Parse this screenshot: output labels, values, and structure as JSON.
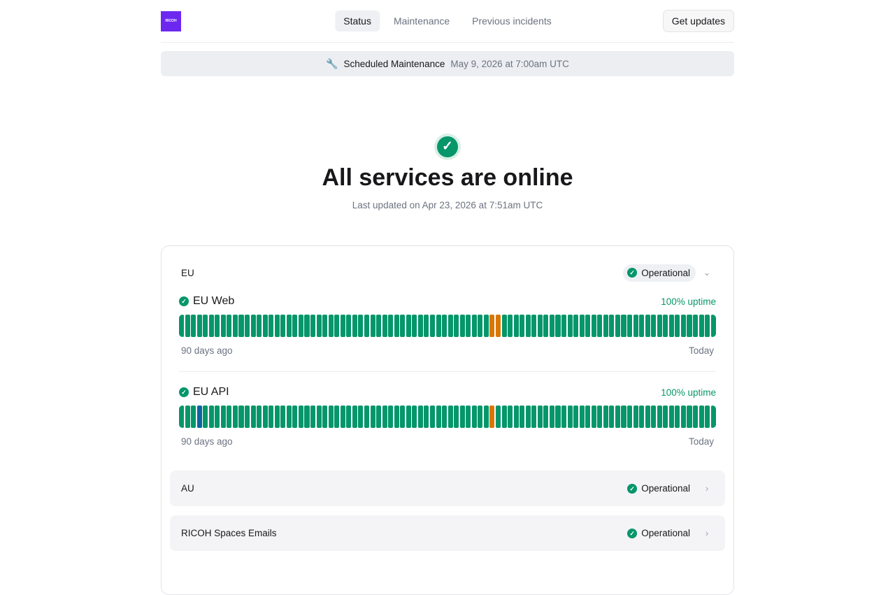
{
  "header": {
    "logo": "RICOH",
    "nav": [
      {
        "label": "Status",
        "active": true
      },
      {
        "label": "Maintenance"
      },
      {
        "label": "Previous incidents"
      }
    ],
    "get_updates": "Get updates"
  },
  "maintenance_banner": {
    "icon": "wrench-icon",
    "title": "Scheduled Maintenance",
    "date": "May 9, 2026 at 7:00am UTC"
  },
  "hero": {
    "title": "All services are online",
    "updated": "Last updated on Apr 23, 2026 at 7:51am UTC"
  },
  "colors": {
    "operational": "#059669",
    "degraded": "#d97706",
    "maintenance": "#0b64a0"
  },
  "groups": [
    {
      "name": "EU",
      "status": "Operational",
      "expanded": true,
      "services": [
        {
          "name": "EU Web",
          "uptime": "100% uptime",
          "days": 90,
          "degraded_days": [
            52,
            53
          ],
          "maintenance_days": [],
          "start_label": "90 days ago",
          "end_label": "Today"
        },
        {
          "name": "EU API",
          "uptime": "100% uptime",
          "days": 90,
          "degraded_days": [
            52
          ],
          "maintenance_days": [
            3
          ],
          "start_label": "90 days ago",
          "end_label": "Today"
        }
      ]
    },
    {
      "name": "AU",
      "status": "Operational",
      "expanded": false
    },
    {
      "name": "RICOH Spaces Emails",
      "status": "Operational",
      "expanded": false
    }
  ]
}
